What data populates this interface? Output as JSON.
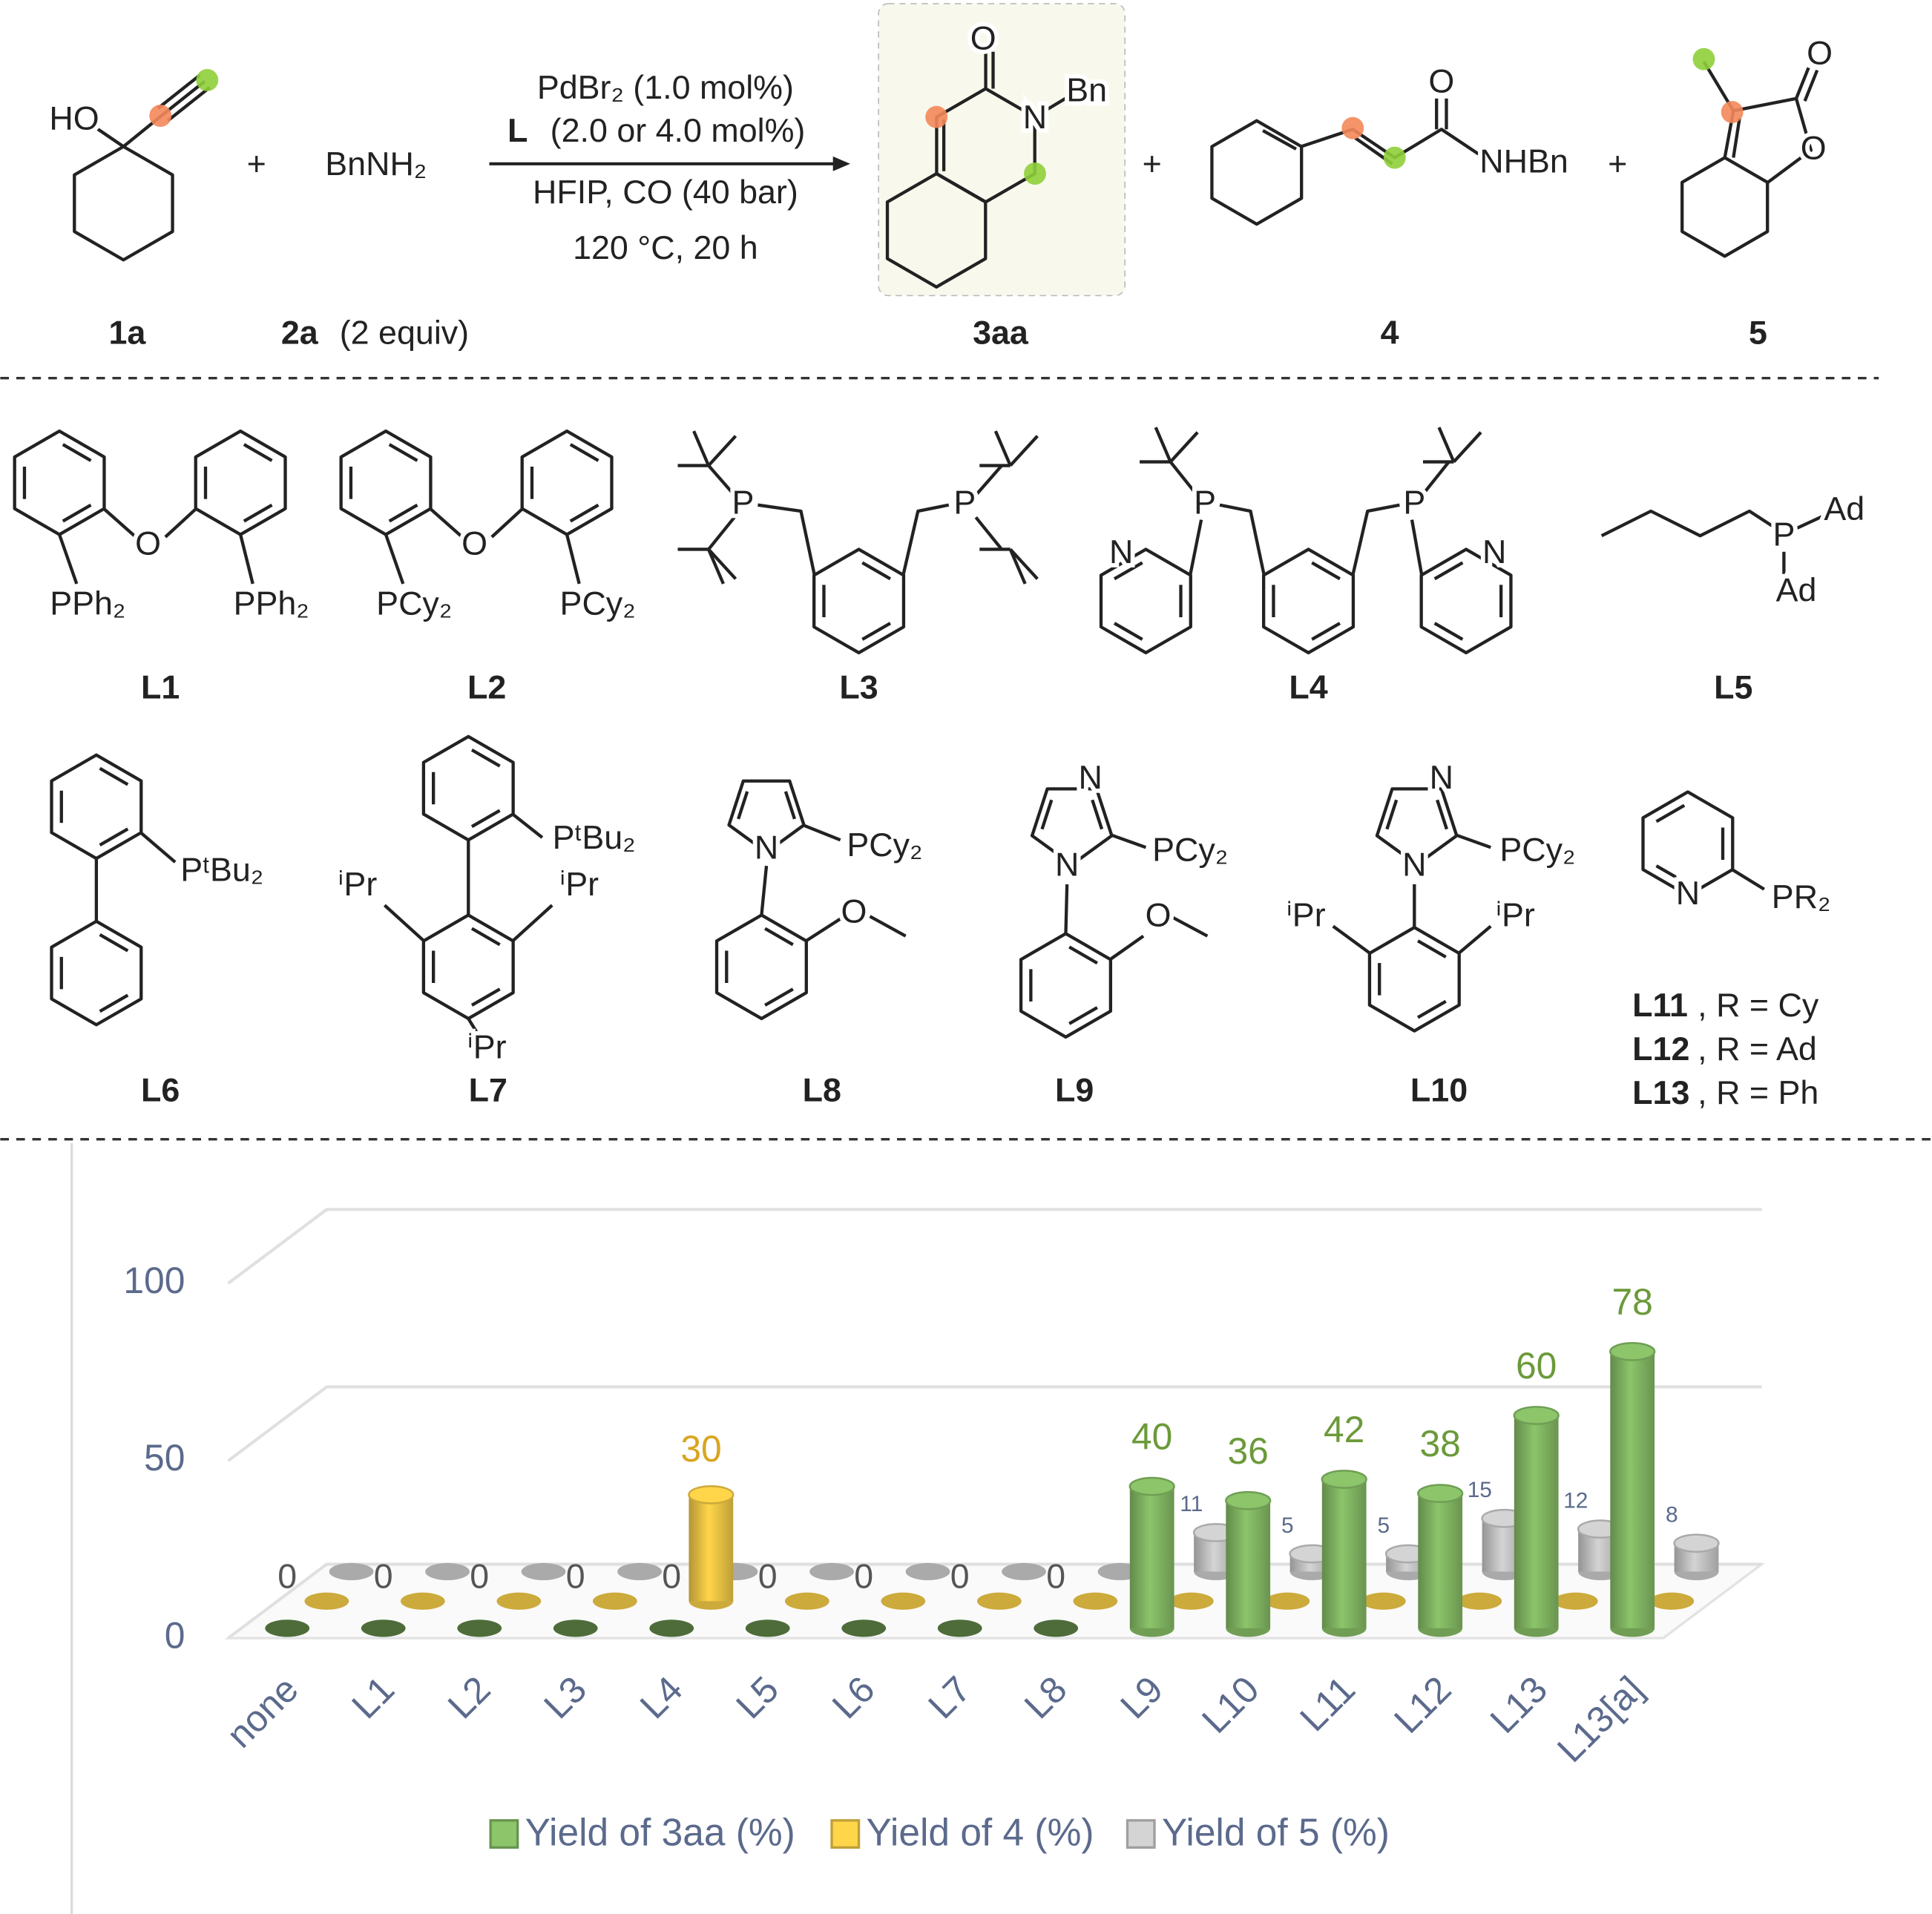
{
  "reaction": {
    "plus": "+",
    "reagent": "BnNH₂",
    "compound_labels": [
      "1a",
      "2a",
      "3aa",
      "4",
      "5"
    ],
    "equiv": "(2 equiv)",
    "ligand_symbol": "L",
    "conditions": [
      "PdBr₂ (1.0 mol%)",
      "(2.0 or 4.0 mol%)",
      "HFIP, CO (40 bar)",
      "120 °C, 20 h"
    ],
    "atoms_1a": [
      "HO"
    ],
    "atoms_3aa": [
      "O",
      "N",
      "Bn"
    ],
    "atoms_4": [
      "O",
      "NHBn"
    ],
    "atoms_5": [
      "O",
      "O"
    ]
  },
  "ligands": [
    {
      "label": "L1",
      "atoms": [
        "O",
        "PPh₂",
        "PPh₂"
      ]
    },
    {
      "label": "L2",
      "atoms": [
        "O",
        "PCy₂",
        "PCy₂"
      ]
    },
    {
      "label": "L3",
      "atoms": [
        "P",
        "P"
      ]
    },
    {
      "label": "L4",
      "atoms": [
        "P",
        "P",
        "N",
        "N"
      ]
    },
    {
      "label": "L5",
      "atoms": [
        "P",
        "Ad",
        "Ad"
      ]
    },
    {
      "label": "L6",
      "atoms": [
        "PᵗBu₂"
      ]
    },
    {
      "label": "L7",
      "atoms": [
        "PᵗBu₂",
        "ⁱPr",
        "ⁱPr",
        "ⁱPr"
      ]
    },
    {
      "label": "L8",
      "atoms": [
        "N",
        "PCy₂",
        "O"
      ]
    },
    {
      "label": "L9",
      "atoms": [
        "N",
        "N",
        "PCy₂",
        "O"
      ]
    },
    {
      "label": "L10",
      "atoms": [
        "N",
        "N",
        "PCy₂",
        "ⁱPr",
        "ⁱPr"
      ]
    }
  ],
  "pyridyl_ligand": {
    "atoms": [
      "N",
      "PR₂"
    ],
    "variants": [
      {
        "label": "L11",
        "text": ", R = Cy"
      },
      {
        "label": "L12",
        "text": ", R = Ad"
      },
      {
        "label": "L13",
        "text": ", R = Ph"
      }
    ]
  },
  "chart_data": {
    "type": "bar3d",
    "categories": [
      "none",
      "L1",
      "L2",
      "L3",
      "L4",
      "L5",
      "L6",
      "L7",
      "L8",
      "L9",
      "L10",
      "L11",
      "L12",
      "L13",
      "L13[a]"
    ],
    "series": [
      {
        "name": "Yield of 3aa (%)",
        "color": "#8cc56a",
        "values": [
          0,
          0,
          0,
          0,
          0,
          0,
          0,
          0,
          0,
          40,
          36,
          42,
          38,
          60,
          78
        ]
      },
      {
        "name": "Yield of 4 (%)",
        "color": "#ffd54a",
        "values": [
          0,
          0,
          0,
          0,
          30,
          0,
          0,
          0,
          0,
          0,
          0,
          0,
          0,
          0,
          0
        ]
      },
      {
        "name": "Yield of 5 (%)",
        "color": "#d4d4d4",
        "values": [
          0,
          0,
          0,
          0,
          0,
          0,
          0,
          0,
          0,
          11,
          5,
          5,
          15,
          12,
          8
        ]
      }
    ],
    "ylim": [
      0,
      100
    ],
    "yticks": [
      0,
      50,
      100
    ],
    "grid": true,
    "legend": "bottom"
  }
}
